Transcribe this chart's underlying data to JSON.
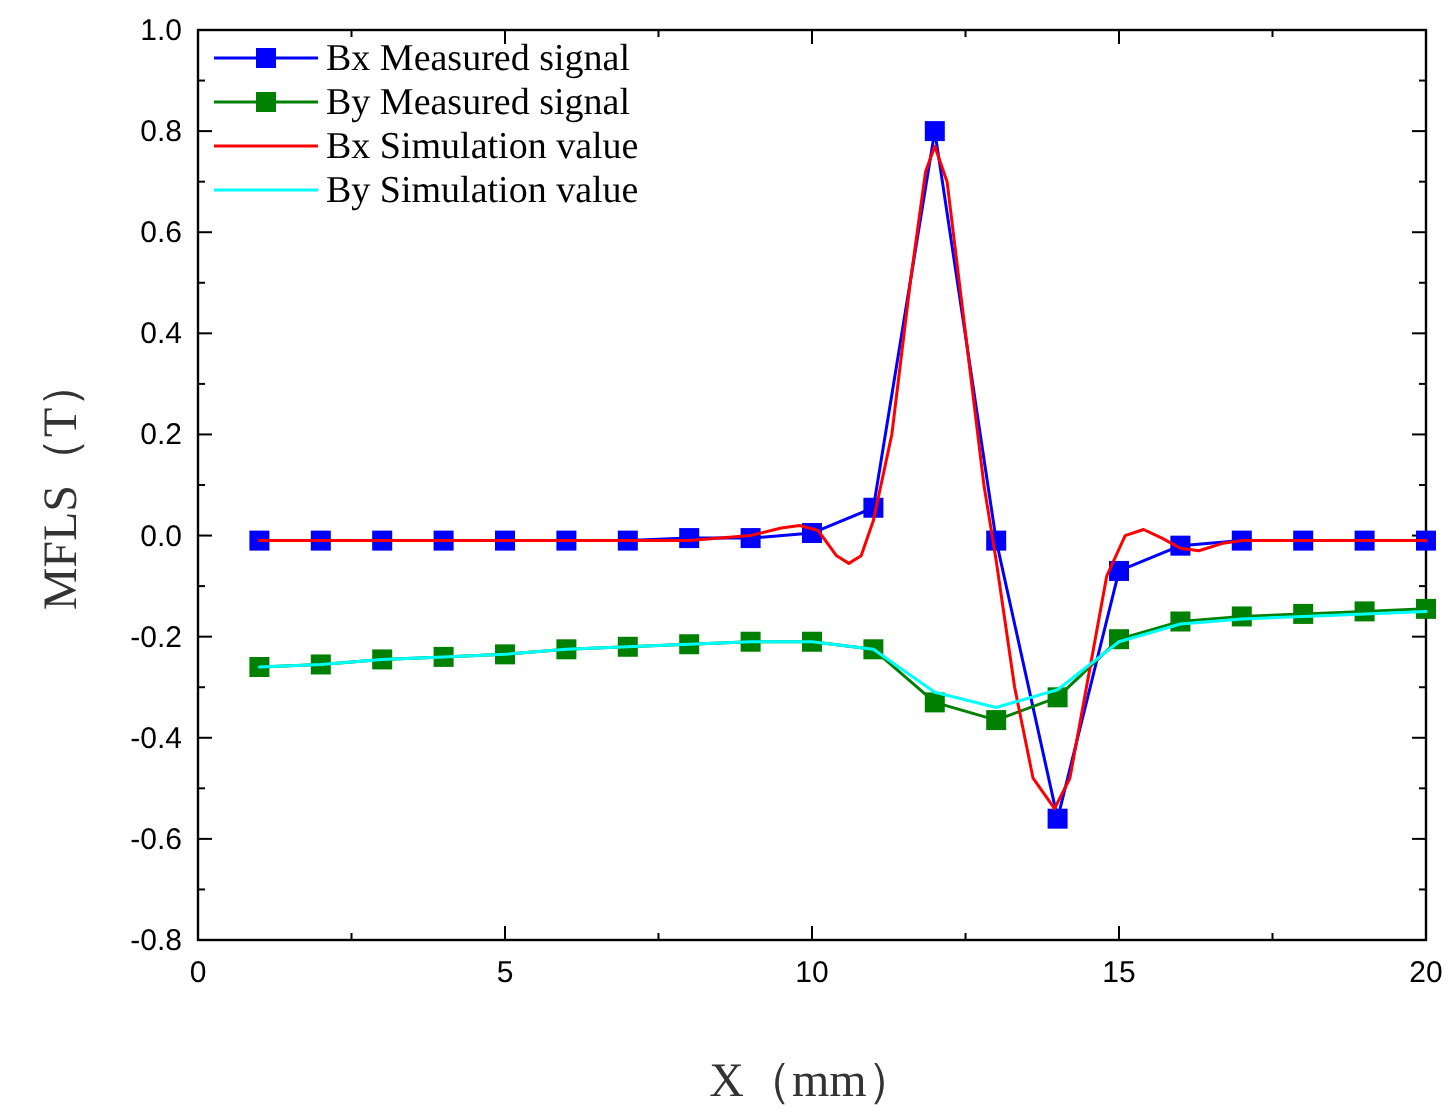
{
  "chart_data": {
    "type": "line",
    "xlabel": "X（mm）",
    "ylabel": "MFLS（T）",
    "xlim": [
      0,
      20
    ],
    "ylim": [
      -0.8,
      1.0
    ],
    "xticks": [
      0,
      5,
      10,
      15,
      20
    ],
    "yticks": [
      -0.8,
      -0.6,
      -0.4,
      -0.2,
      {
        "value": 0,
        "label": "0.0"
      },
      0.2,
      0.4,
      0.6,
      0.8,
      {
        "value": 1,
        "label": "1.0"
      }
    ],
    "legend": "top left",
    "series": [
      {
        "name": "Bx Measured signal",
        "color": "#0000ff",
        "marker": "square",
        "x": [
          1,
          2,
          3,
          4,
          5,
          6,
          7,
          8,
          9,
          10,
          11,
          12,
          13,
          14,
          15,
          16,
          17,
          18,
          19,
          20
        ],
        "values": [
          -0.01,
          -0.01,
          -0.01,
          -0.01,
          -0.01,
          -0.01,
          -0.01,
          -0.005,
          -0.005,
          0.005,
          0.055,
          0.8,
          -0.01,
          -0.56,
          -0.07,
          -0.02,
          -0.01,
          -0.01,
          -0.01,
          -0.01
        ]
      },
      {
        "name": "By Measured signal",
        "color": "#008000",
        "marker": "square",
        "x": [
          1,
          2,
          3,
          4,
          5,
          6,
          7,
          8,
          9,
          10,
          11,
          12,
          13,
          14,
          15,
          16,
          17,
          18,
          19,
          20
        ],
        "values": [
          -0.26,
          -0.255,
          -0.245,
          -0.24,
          -0.235,
          -0.225,
          -0.22,
          -0.215,
          -0.21,
          -0.21,
          -0.225,
          -0.33,
          -0.365,
          -0.32,
          -0.205,
          -0.17,
          -0.16,
          -0.155,
          -0.15,
          -0.145
        ]
      },
      {
        "name": "Bx Simulation value",
        "color": "#ff0000",
        "marker": "none",
        "x": [
          1,
          3,
          5,
          7,
          8,
          9,
          9.5,
          9.8,
          10.1,
          10.4,
          10.6,
          10.8,
          11,
          11.3,
          11.6,
          11.85,
          12,
          12.2,
          12.5,
          12.8,
          13,
          13.3,
          13.6,
          13.95,
          14.2,
          14.5,
          14.8,
          15.1,
          15.4,
          15.7,
          16,
          16.3,
          16.7,
          17,
          18,
          19,
          20
        ],
        "values": [
          -0.01,
          -0.01,
          -0.01,
          -0.01,
          -0.01,
          0,
          0.015,
          0.02,
          0.01,
          -0.04,
          -0.055,
          -0.04,
          0.03,
          0.2,
          0.5,
          0.72,
          0.77,
          0.7,
          0.4,
          0.1,
          -0.05,
          -0.3,
          -0.48,
          -0.54,
          -0.48,
          -0.28,
          -0.08,
          0,
          0.012,
          -0.005,
          -0.025,
          -0.03,
          -0.015,
          -0.01,
          -0.01,
          -0.01,
          -0.01
        ]
      },
      {
        "name": "By Simulation value",
        "color": "#00ffff",
        "marker": "none",
        "x": [
          1,
          2,
          3,
          4,
          5,
          6,
          7,
          8,
          9,
          10,
          11,
          12,
          13,
          14,
          15,
          16,
          17,
          18,
          19,
          20
        ],
        "values": [
          -0.26,
          -0.255,
          -0.245,
          -0.24,
          -0.235,
          -0.225,
          -0.22,
          -0.215,
          -0.21,
          -0.21,
          -0.225,
          -0.31,
          -0.34,
          -0.305,
          -0.21,
          -0.175,
          -0.165,
          -0.16,
          -0.155,
          -0.15
        ]
      }
    ]
  }
}
